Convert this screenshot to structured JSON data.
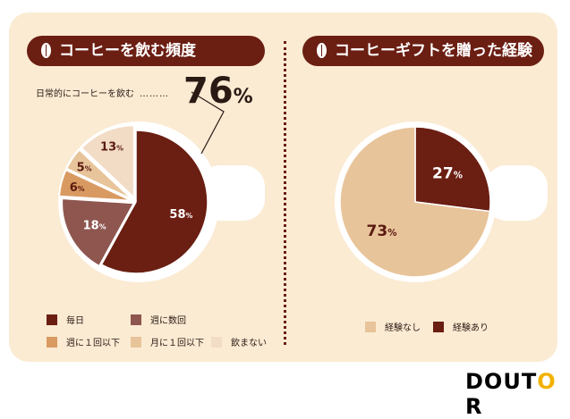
{
  "brand": {
    "logo_text": "DOUTOR",
    "accent_color": "#f2b200"
  },
  "colors": {
    "dark": "#6b1e12",
    "mid": "#8f5650",
    "orange": "#d99a62",
    "light": "#e8c49a",
    "pale": "#f2dcc6",
    "background": "#fbebd3"
  },
  "left_panel": {
    "title": "コーヒーを飲む頻度",
    "callout_label": "日常的にコーヒーを飲む",
    "callout_dots": "………",
    "callout_value": "76",
    "callout_unit": "%",
    "legend": [
      "毎日",
      "週に数回",
      "週に１回以下",
      "月に１回以下",
      "飲まない"
    ]
  },
  "right_panel": {
    "title": "コーヒーギフトを贈った経験",
    "legend": [
      "経験なし",
      "経験あり"
    ]
  },
  "chart_data": [
    {
      "type": "pie",
      "title": "コーヒーを飲む頻度",
      "unit": "%",
      "slices": [
        {
          "label": "毎日",
          "value": 58,
          "color": "#6b1e12",
          "label_color": "#ffffff"
        },
        {
          "label": "週に数回",
          "value": 18,
          "color": "#8f5650",
          "label_color": "#ffffff"
        },
        {
          "label": "週に１回以下",
          "value": 6,
          "color": "#d99a62",
          "label_color": "#5a1a10"
        },
        {
          "label": "月に１回以下",
          "value": 5,
          "color": "#e8c49a",
          "label_color": "#5a1a10"
        },
        {
          "label": "飲まない",
          "value": 13,
          "color": "#f2dcc6",
          "label_color": "#5a1a10"
        }
      ],
      "legend_position": "bottom"
    },
    {
      "type": "pie",
      "title": "コーヒーギフトを贈った経験",
      "unit": "%",
      "slices": [
        {
          "label": "経験あり",
          "value": 27,
          "color": "#6b1e12",
          "label_color": "#ffffff"
        },
        {
          "label": "経験なし",
          "value": 73,
          "color": "#e8c49a",
          "label_color": "#5a1a10"
        }
      ],
      "legend_position": "bottom"
    }
  ]
}
